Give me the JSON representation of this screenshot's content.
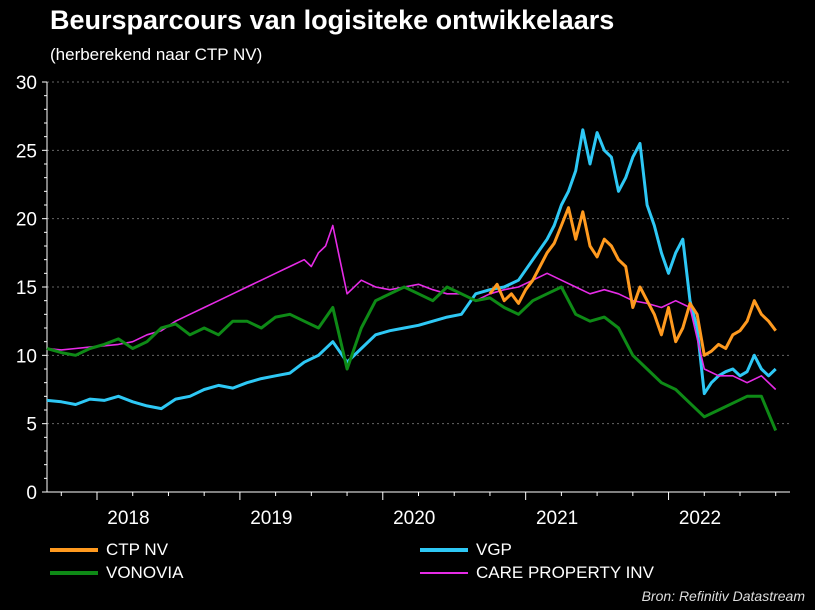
{
  "title": "Beursparcours van logisiteke ontwikkelaars",
  "subtitle": "(herberekend naar CTP NV)",
  "source": "Bron: Refinitiv Datastream",
  "chart_data": {
    "type": "line",
    "title": "Beursparcours van logisiteke ontwikkelaars",
    "subtitle": "(herberekend naar CTP NV)",
    "xlim": [
      2017.65,
      2022.85
    ],
    "ylim": [
      0,
      30
    ],
    "yticks": [
      0,
      5,
      10,
      15,
      20,
      25,
      30
    ],
    "xticks": [
      2018,
      2019,
      2020,
      2021,
      2022
    ],
    "xtick_labels": [
      "2018",
      "2019",
      "2020",
      "2021",
      "2022"
    ],
    "grid": "horizontal dashed",
    "legend_position": "bottom",
    "series": [
      {
        "name": "CTP NV",
        "color": "#FF9A1F",
        "x": [
          2020.75,
          2020.8,
          2020.85,
          2020.9,
          2020.95,
          2021.0,
          2021.05,
          2021.1,
          2021.15,
          2021.2,
          2021.25,
          2021.3,
          2021.35,
          2021.4,
          2021.45,
          2021.5,
          2021.55,
          2021.6,
          2021.65,
          2021.7,
          2021.75,
          2021.8,
          2021.85,
          2021.9,
          2021.95,
          2022.0,
          2022.05,
          2022.1,
          2022.15,
          2022.2,
          2022.25,
          2022.3,
          2022.35,
          2022.4,
          2022.45,
          2022.5,
          2022.55,
          2022.6,
          2022.65,
          2022.7,
          2022.75
        ],
        "y": [
          14.5,
          15.2,
          14.0,
          14.5,
          13.8,
          14.8,
          15.5,
          16.5,
          17.5,
          18.2,
          19.5,
          20.8,
          18.5,
          20.5,
          18.0,
          17.2,
          18.5,
          18.0,
          17.0,
          16.5,
          13.5,
          15.0,
          14.0,
          13.0,
          11.5,
          13.5,
          11.0,
          12.0,
          13.8,
          13.0,
          10.0,
          10.3,
          10.8,
          10.5,
          11.5,
          11.8,
          12.5,
          14.0,
          13.0,
          12.5,
          11.8
        ]
      },
      {
        "name": "VGP",
        "color": "#2EC8F5",
        "x": [
          2017.65,
          2017.75,
          2017.85,
          2017.95,
          2018.05,
          2018.15,
          2018.25,
          2018.35,
          2018.45,
          2018.55,
          2018.65,
          2018.75,
          2018.85,
          2018.95,
          2019.05,
          2019.15,
          2019.25,
          2019.35,
          2019.45,
          2019.55,
          2019.65,
          2019.75,
          2019.85,
          2019.95,
          2020.05,
          2020.15,
          2020.25,
          2020.35,
          2020.45,
          2020.55,
          2020.65,
          2020.75,
          2020.85,
          2020.95,
          2021.05,
          2021.15,
          2021.2,
          2021.25,
          2021.3,
          2021.35,
          2021.4,
          2021.45,
          2021.5,
          2021.55,
          2021.6,
          2021.65,
          2021.7,
          2021.75,
          2021.8,
          2021.85,
          2021.9,
          2021.95,
          2022.0,
          2022.05,
          2022.1,
          2022.15,
          2022.2,
          2022.25,
          2022.3,
          2022.35,
          2022.4,
          2022.45,
          2022.5,
          2022.55,
          2022.6,
          2022.65,
          2022.7,
          2022.75
        ],
        "y": [
          6.7,
          6.6,
          6.4,
          6.8,
          6.7,
          7.0,
          6.6,
          6.3,
          6.1,
          6.8,
          7.0,
          7.5,
          7.8,
          7.6,
          8.0,
          8.3,
          8.5,
          8.7,
          9.5,
          10.0,
          11.0,
          9.5,
          10.5,
          11.5,
          11.8,
          12.0,
          12.2,
          12.5,
          12.8,
          13.0,
          14.5,
          14.8,
          15.0,
          15.5,
          17.0,
          18.5,
          19.5,
          21.0,
          22.0,
          23.5,
          26.5,
          24.0,
          26.3,
          25.0,
          24.5,
          22.0,
          23.0,
          24.5,
          25.5,
          21.0,
          19.5,
          17.5,
          16.0,
          17.5,
          18.5,
          14.0,
          12.0,
          7.2,
          8.0,
          8.5,
          8.8,
          9.0,
          8.5,
          8.8,
          10.0,
          9.0,
          8.5,
          9.0
        ]
      },
      {
        "name": "VONOVIA",
        "color": "#0E8A16",
        "x": [
          2017.65,
          2017.75,
          2017.85,
          2017.95,
          2018.05,
          2018.15,
          2018.25,
          2018.35,
          2018.45,
          2018.55,
          2018.65,
          2018.75,
          2018.85,
          2018.95,
          2019.05,
          2019.15,
          2019.25,
          2019.35,
          2019.45,
          2019.55,
          2019.65,
          2019.75,
          2019.85,
          2019.95,
          2020.05,
          2020.15,
          2020.25,
          2020.35,
          2020.45,
          2020.55,
          2020.65,
          2020.75,
          2020.85,
          2020.95,
          2021.05,
          2021.15,
          2021.25,
          2021.35,
          2021.45,
          2021.55,
          2021.65,
          2021.75,
          2021.85,
          2021.95,
          2022.05,
          2022.15,
          2022.25,
          2022.35,
          2022.45,
          2022.55,
          2022.65,
          2022.75
        ],
        "y": [
          10.5,
          10.2,
          10.0,
          10.5,
          10.8,
          11.2,
          10.5,
          11.0,
          12.0,
          12.3,
          11.5,
          12.0,
          11.5,
          12.5,
          12.5,
          12.0,
          12.8,
          13.0,
          12.5,
          12.0,
          13.5,
          9.0,
          12.0,
          14.0,
          14.5,
          15.0,
          14.5,
          14.0,
          15.0,
          14.5,
          14.0,
          14.2,
          13.5,
          13.0,
          14.0,
          14.5,
          15.0,
          13.0,
          12.5,
          12.8,
          12.0,
          10.0,
          9.0,
          8.0,
          7.5,
          6.5,
          5.5,
          6.0,
          6.5,
          7.0,
          7.0,
          4.5
        ]
      },
      {
        "name": "CARE PROPERTY INV",
        "color": "#E62BE6",
        "x": [
          2017.65,
          2017.75,
          2017.85,
          2017.95,
          2018.05,
          2018.15,
          2018.25,
          2018.35,
          2018.45,
          2018.55,
          2018.65,
          2018.75,
          2018.85,
          2018.95,
          2019.05,
          2019.15,
          2019.25,
          2019.35,
          2019.45,
          2019.5,
          2019.55,
          2019.6,
          2019.65,
          2019.7,
          2019.75,
          2019.85,
          2019.95,
          2020.05,
          2020.15,
          2020.25,
          2020.35,
          2020.45,
          2020.55,
          2020.65,
          2020.75,
          2020.85,
          2020.95,
          2021.05,
          2021.15,
          2021.25,
          2021.35,
          2021.45,
          2021.55,
          2021.65,
          2021.75,
          2021.85,
          2021.95,
          2022.05,
          2022.15,
          2022.25,
          2022.35,
          2022.45,
          2022.55,
          2022.65,
          2022.75
        ],
        "y": [
          10.5,
          10.4,
          10.5,
          10.6,
          10.7,
          10.8,
          11.0,
          11.5,
          11.8,
          12.5,
          13.0,
          13.5,
          14.0,
          14.5,
          15.0,
          15.5,
          16.0,
          16.5,
          17.0,
          16.5,
          17.5,
          18.0,
          19.5,
          17.0,
          14.5,
          15.5,
          15.0,
          14.8,
          15.0,
          15.2,
          14.8,
          14.5,
          14.5,
          14.0,
          14.5,
          14.8,
          15.0,
          15.5,
          16.0,
          15.5,
          15.0,
          14.5,
          14.8,
          14.5,
          14.0,
          13.8,
          13.5,
          14.0,
          13.5,
          9.0,
          8.5,
          8.5,
          8.0,
          8.5,
          7.5
        ]
      }
    ]
  }
}
